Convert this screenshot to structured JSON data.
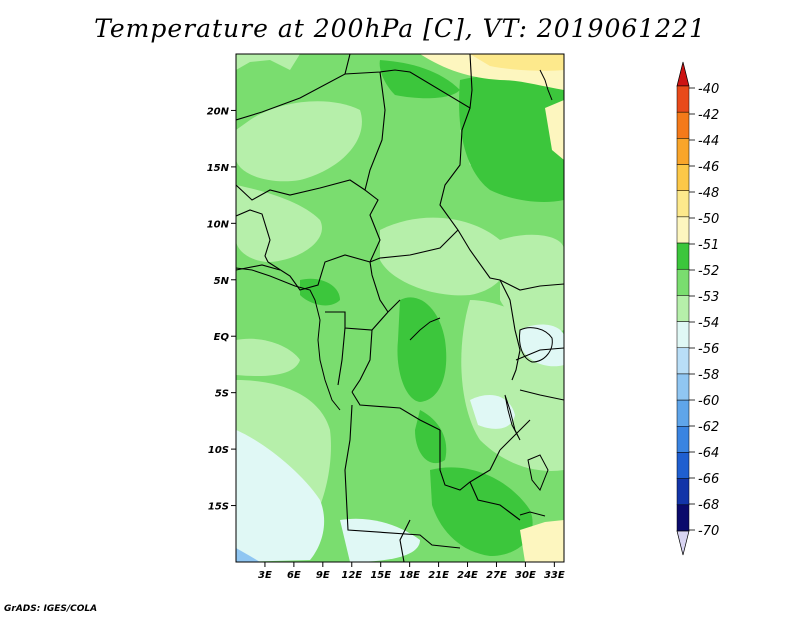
{
  "title": "Temperature at 200hPa [C], VT: 2019061221",
  "credit": "GrADS: IGES/COLA",
  "map": {
    "lat_ticks": [
      {
        "lat": 20,
        "label": "20N"
      },
      {
        "lat": 15,
        "label": "15N"
      },
      {
        "lat": 10,
        "label": "10N"
      },
      {
        "lat": 5,
        "label": "5N"
      },
      {
        "lat": 0,
        "label": "EQ"
      },
      {
        "lat": -5,
        "label": "5S"
      },
      {
        "lat": -10,
        "label": "10S"
      },
      {
        "lat": -15,
        "label": "15S"
      }
    ],
    "lon_ticks": [
      {
        "lon": 3,
        "label": "3E"
      },
      {
        "lon": 6,
        "label": "6E"
      },
      {
        "lon": 9,
        "label": "9E"
      },
      {
        "lon": 12,
        "label": "12E"
      },
      {
        "lon": 15,
        "label": "15E"
      },
      {
        "lon": 18,
        "label": "18E"
      },
      {
        "lon": 21,
        "label": "21E"
      },
      {
        "lon": 24,
        "label": "24E"
      },
      {
        "lon": 27,
        "label": "27E"
      },
      {
        "lon": 30,
        "label": "30E"
      },
      {
        "lon": 33,
        "label": "33E"
      }
    ],
    "lon_range": [
      0,
      34
    ],
    "lat_range": [
      -20,
      25
    ]
  },
  "colorbar": {
    "levels": [
      {
        "label": "-40",
        "color": "#d7191c"
      },
      {
        "label": "-42",
        "color": "#e84a1a"
      },
      {
        "label": "-44",
        "color": "#f47a1a"
      },
      {
        "label": "-46",
        "color": "#f9a52a"
      },
      {
        "label": "-48",
        "color": "#fcc848"
      },
      {
        "label": "-50",
        "color": "#fde98c"
      },
      {
        "label": "-51",
        "color": "#fdf6bf"
      },
      {
        "label": "-52",
        "color": "#3cc63c"
      },
      {
        "label": "-53",
        "color": "#7add6f"
      },
      {
        "label": "-54",
        "color": "#b6efaa"
      },
      {
        "label": "-56",
        "color": "#e0f8f5"
      },
      {
        "label": "-58",
        "color": "#b9def7"
      },
      {
        "label": "-60",
        "color": "#90c6f2"
      },
      {
        "label": "-62",
        "color": "#5fa5ea"
      },
      {
        "label": "-64",
        "color": "#3a84e1"
      },
      {
        "label": "-66",
        "color": "#1f5fd0"
      },
      {
        "label": "-68",
        "color": "#1234a8"
      },
      {
        "label": "-70",
        "color": "#0a0a6c"
      }
    ],
    "top_cap_color": "#cc1414",
    "bottom_cap_color": "#d8d4f2"
  }
}
